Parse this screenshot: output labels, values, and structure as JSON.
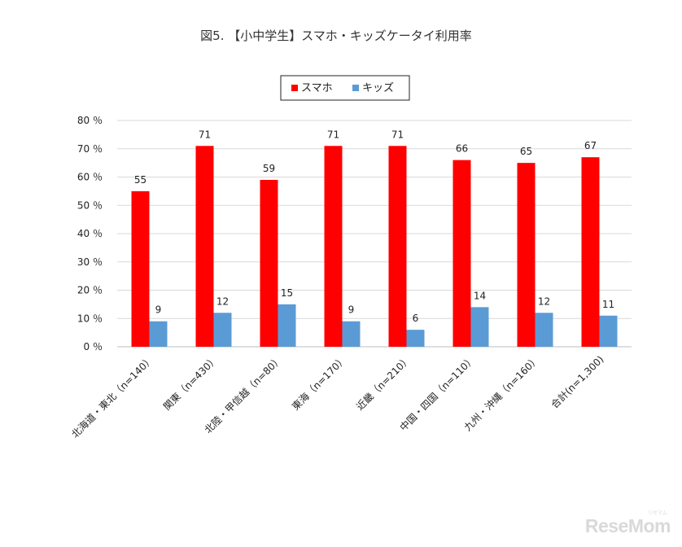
{
  "chart_data": {
    "type": "bar",
    "title": "図5. 【小中学生】スマホ・キッズケータイ利用率",
    "categories": [
      "北海道・東北（n=140）",
      "関東（n=430）",
      "北陸・甲信越（n=80）",
      "東海（n=170）",
      "近畿（n=210）",
      "中国・四国（n=110）",
      "九州・沖縄（n=160）",
      "合計(n=1,300)"
    ],
    "series": [
      {
        "name": "スマホ",
        "color": "#ff0000",
        "values": [
          55,
          71,
          59,
          71,
          71,
          66,
          65,
          67
        ]
      },
      {
        "name": "キッズ",
        "color": "#5b9bd5",
        "values": [
          9,
          12,
          15,
          9,
          6,
          14,
          12,
          11
        ]
      }
    ],
    "ylim": [
      0,
      80
    ],
    "yticks": [
      0,
      10,
      20,
      30,
      40,
      50,
      60,
      70,
      80
    ],
    "ytick_suffix": "％",
    "xlabel": "",
    "ylabel": "",
    "grid": true,
    "legend": "top-center"
  },
  "watermark": {
    "text": "ReseMom",
    "subtext": "リセマム"
  }
}
